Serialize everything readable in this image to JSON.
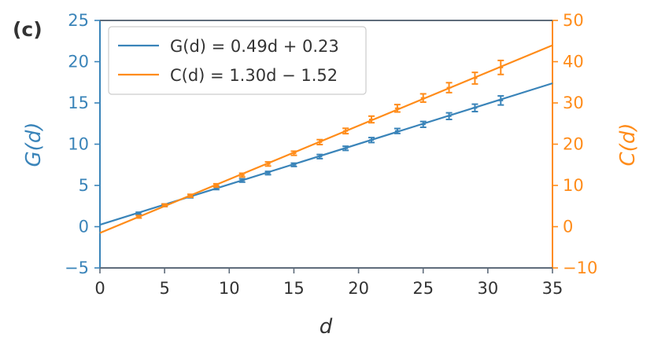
{
  "panel_label": "(c)",
  "colors": {
    "G": "#3a84b9",
    "C": "#ff8c1a",
    "axis": "#5f6c7b",
    "text": "#333333"
  },
  "chart_data": {
    "type": "scatter",
    "title": "",
    "xlabel": "d",
    "ylabel_left": "G(d)",
    "ylabel_right": "C(d)",
    "xlim": [
      0,
      35
    ],
    "ylim_left": [
      -5,
      25
    ],
    "ylim_right": [
      -10,
      50
    ],
    "x_ticks": [
      0,
      5,
      10,
      15,
      20,
      25,
      30,
      35
    ],
    "y_ticks_left": [
      -5,
      0,
      5,
      10,
      15,
      20,
      25
    ],
    "y_ticks_right": [
      -10,
      0,
      10,
      20,
      30,
      40,
      50
    ],
    "grid": false,
    "legend_position": "upper-left",
    "legend": [
      "G(d) = 0.49d + 0.23",
      "C(d) = 1.30d − 1.52"
    ],
    "series": [
      {
        "name": "G(d)",
        "axis": "left",
        "color": "#3a84b9",
        "fit": {
          "slope": 0.49,
          "intercept": 0.23
        },
        "x": [
          3,
          5,
          7,
          9,
          11,
          13,
          15,
          17,
          19,
          21,
          23,
          25,
          27,
          29,
          31
        ],
        "y": [
          1.6,
          2.6,
          3.7,
          4.7,
          5.6,
          6.5,
          7.5,
          8.5,
          9.5,
          10.5,
          11.6,
          12.4,
          13.4,
          14.4,
          15.3
        ],
        "err": [
          0.15,
          0.15,
          0.2,
          0.2,
          0.2,
          0.2,
          0.2,
          0.25,
          0.25,
          0.3,
          0.3,
          0.35,
          0.4,
          0.45,
          0.55
        ]
      },
      {
        "name": "C(d)",
        "axis": "right",
        "color": "#ff8c1a",
        "fit": {
          "slope": 1.3,
          "intercept": -1.52
        },
        "x": [
          3,
          5,
          7,
          9,
          11,
          13,
          15,
          17,
          19,
          21,
          23,
          25,
          27,
          29,
          31
        ],
        "y": [
          2.4,
          5.2,
          7.5,
          10.0,
          12.5,
          15.2,
          17.8,
          20.5,
          23.2,
          26.0,
          28.7,
          31.2,
          33.7,
          36.0,
          38.6
        ],
        "err": [
          0.3,
          0.3,
          0.35,
          0.4,
          0.45,
          0.5,
          0.5,
          0.6,
          0.65,
          0.8,
          0.9,
          1.0,
          1.2,
          1.4,
          1.7
        ]
      }
    ]
  }
}
